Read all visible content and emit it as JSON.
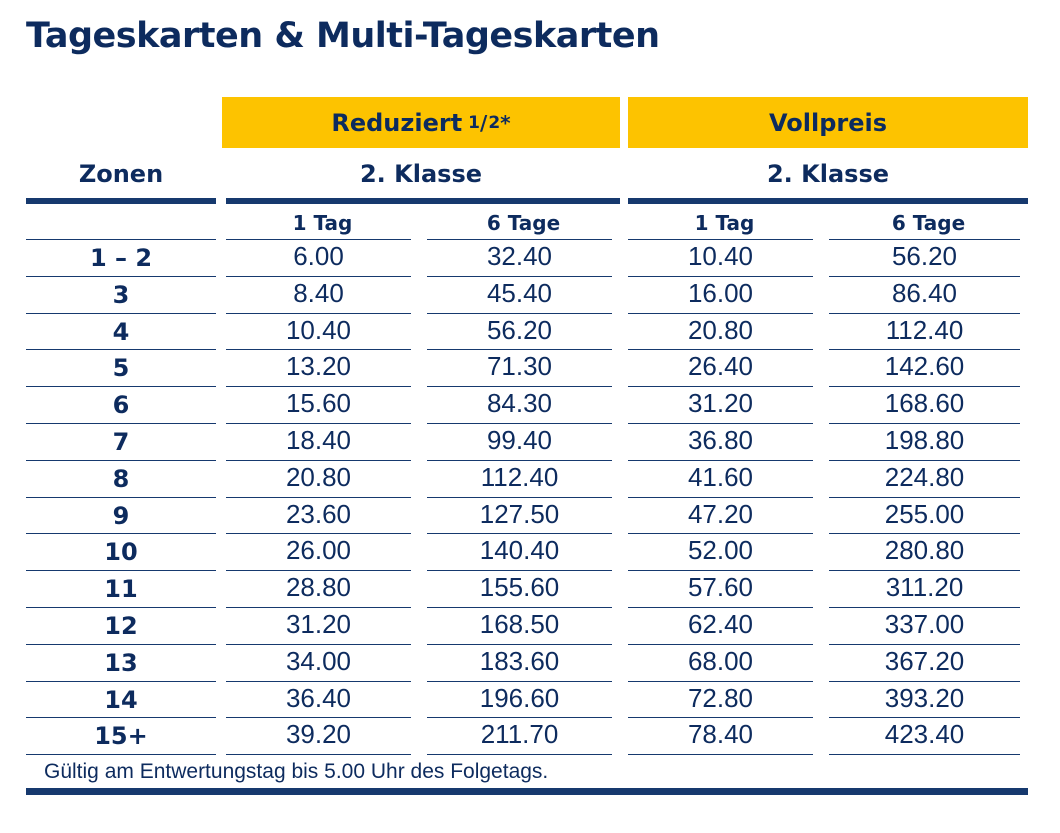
{
  "title": "Tageskarten & Multi-Tageskarten",
  "groups": {
    "reduced": {
      "label": "Reduziert",
      "fraction_num": "1",
      "fraction_den": "2",
      "asterisk": "*",
      "class": "2. Klasse"
    },
    "full": {
      "label": "Vollpreis",
      "class": "2. Klasse"
    }
  },
  "zones_header": "Zonen",
  "columns": [
    "1 Tag",
    "6 Tage",
    "1 Tag",
    "6 Tage"
  ],
  "rows": [
    {
      "zone": "1 – 2",
      "values": [
        "6.00",
        "32.40",
        "10.40",
        "56.20"
      ]
    },
    {
      "zone": "3",
      "values": [
        "8.40",
        "45.40",
        "16.00",
        "86.40"
      ]
    },
    {
      "zone": "4",
      "values": [
        "10.40",
        "56.20",
        "20.80",
        "112.40"
      ]
    },
    {
      "zone": "5",
      "values": [
        "13.20",
        "71.30",
        "26.40",
        "142.60"
      ]
    },
    {
      "zone": "6",
      "values": [
        "15.60",
        "84.30",
        "31.20",
        "168.60"
      ]
    },
    {
      "zone": "7",
      "values": [
        "18.40",
        "99.40",
        "36.80",
        "198.80"
      ]
    },
    {
      "zone": "8",
      "values": [
        "20.80",
        "112.40",
        "41.60",
        "224.80"
      ]
    },
    {
      "zone": "9",
      "values": [
        "23.60",
        "127.50",
        "47.20",
        "255.00"
      ]
    },
    {
      "zone": "10",
      "values": [
        "26.00",
        "140.40",
        "52.00",
        "280.80"
      ]
    },
    {
      "zone": "11",
      "values": [
        "28.80",
        "155.60",
        "57.60",
        "311.20"
      ]
    },
    {
      "zone": "12",
      "values": [
        "31.20",
        "168.50",
        "62.40",
        "337.00"
      ]
    },
    {
      "zone": "13",
      "values": [
        "34.00",
        "183.60",
        "68.00",
        "367.20"
      ]
    },
    {
      "zone": "14",
      "values": [
        "36.40",
        "196.60",
        "72.80",
        "393.20"
      ]
    },
    {
      "zone": "15+",
      "values": [
        "39.20",
        "211.70",
        "78.40",
        "423.40"
      ]
    }
  ],
  "footnote": "Gültig am Entwertungstag bis 5.00 Uhr des Folgetags.",
  "colors": {
    "navy": "#16396e",
    "yellow": "#fdc300"
  }
}
